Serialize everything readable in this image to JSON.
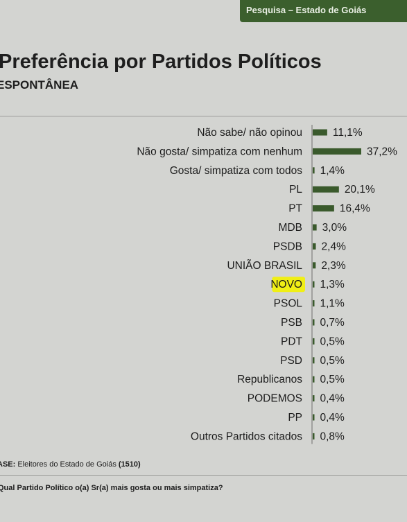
{
  "header": {
    "tab_label": "Pesquisa – Estado de Goiás"
  },
  "titles": {
    "title": "Preferência por Partidos Políticos",
    "subtitle": "ESPONTÂNEA"
  },
  "footer": {
    "base_label": "ASE:",
    "base_text": "Eleitores do Estado de Goiás",
    "base_count": "(1510)",
    "question": "Qual Partido Político o(a) Sr(a) mais gosta ou mais simpatiza?"
  },
  "colors": {
    "bar": "#3a5a2c",
    "header": "#3b5f2d",
    "highlight": "#f3f200"
  },
  "chart_data": {
    "type": "bar",
    "orientation": "horizontal",
    "categories": [
      "Não sabe/ não opinou",
      "Não gosta/ simpatiza com nenhum",
      "Gosta/ simpatiza com todos",
      "PL",
      "PT",
      "MDB",
      "PSDB",
      "UNIÃO BRASIL",
      "NOVO",
      "PSOL",
      "PSB",
      "PDT",
      "PSD",
      "Republicanos",
      "PODEMOS",
      "PP",
      "Outros Partidos citados"
    ],
    "values": [
      11.1,
      37.2,
      1.4,
      20.1,
      16.4,
      3.0,
      2.4,
      2.3,
      1.3,
      1.1,
      0.7,
      0.5,
      0.5,
      0.5,
      0.4,
      0.4,
      0.8
    ],
    "value_labels": [
      "11,1%",
      "37,2%",
      "1,4%",
      "20,1%",
      "16,4%",
      "3,0%",
      "2,4%",
      "2,3%",
      "1,3%",
      "1,1%",
      "0,7%",
      "0,5%",
      "0,5%",
      "0,5%",
      "0,4%",
      "0,4%",
      "0,8%"
    ],
    "highlighted_category": "NOVO",
    "xlim": [
      0,
      37.2
    ]
  }
}
